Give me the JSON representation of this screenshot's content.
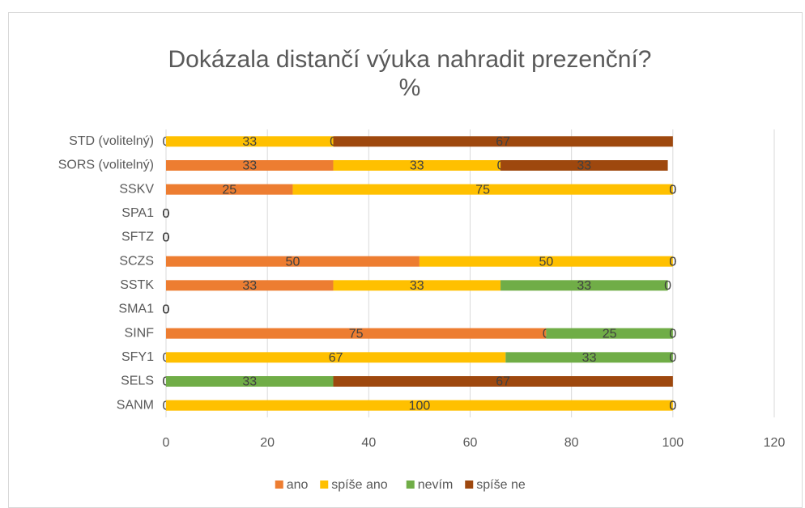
{
  "chart_data": {
    "type": "stacked_bar_horizontal",
    "title": "Dokázala distančí výuka nahradit prezenční?",
    "subtitle": "%",
    "categories": [
      "STD (volitelný)",
      "SORS (volitelný)",
      "SSKV",
      "SPA1",
      "SFTZ",
      "SCZS",
      "SSTK",
      "SMA1",
      "SINF",
      "SFY1",
      "SELS",
      "SANM"
    ],
    "series": [
      {
        "name": "ano",
        "color": "#ED7D31",
        "values": [
          0,
          33,
          25,
          0,
          0,
          50,
          33,
          0,
          75,
          0,
          0,
          0
        ]
      },
      {
        "name": "spíše ano",
        "color": "#FFC000",
        "values": [
          33,
          33,
          75,
          0,
          0,
          50,
          33,
          0,
          0,
          67,
          0,
          100
        ]
      },
      {
        "name": "nevím",
        "color": "#70AD47",
        "values": [
          0,
          0,
          0,
          0,
          0,
          0,
          33,
          0,
          25,
          33,
          33,
          0
        ]
      },
      {
        "name": "spíše ne",
        "color": "#9E480E",
        "values": [
          67,
          33,
          0,
          0,
          0,
          0,
          0,
          0,
          0,
          0,
          67,
          0
        ]
      }
    ],
    "xlim": [
      0,
      120
    ],
    "xticks": [
      0,
      20,
      40,
      60,
      80,
      100,
      120
    ],
    "grid": true,
    "legend": "bottom"
  }
}
